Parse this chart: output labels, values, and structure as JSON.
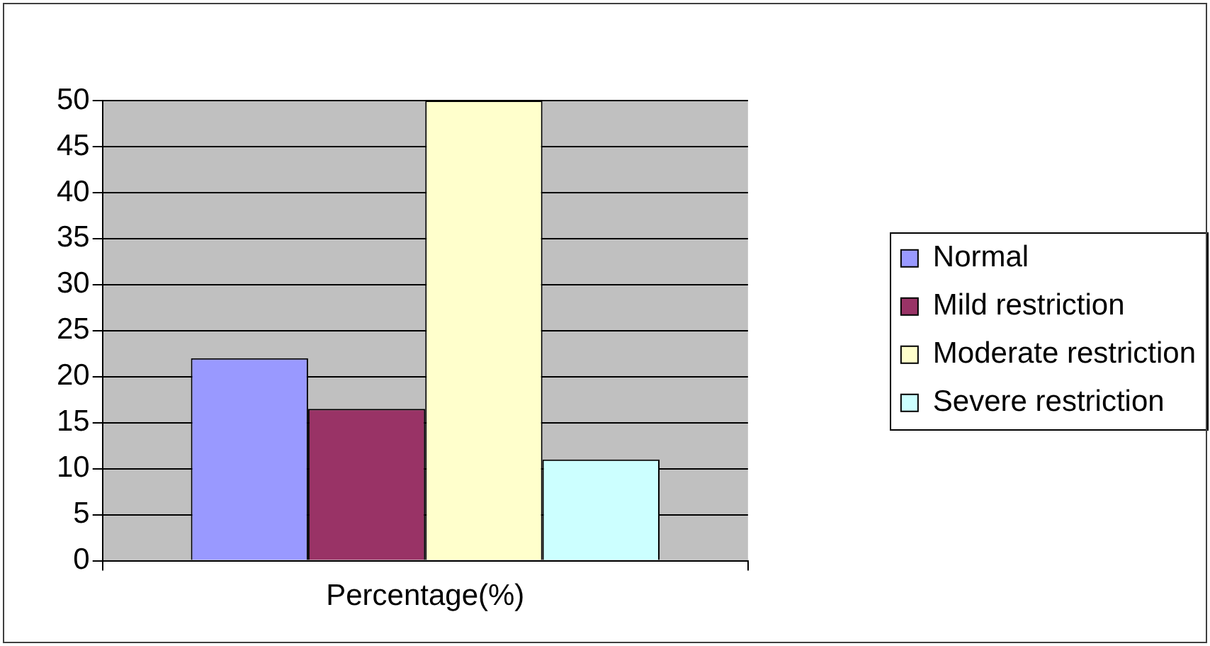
{
  "chart_data": {
    "type": "bar",
    "categories": [
      "Percentage(%)"
    ],
    "series": [
      {
        "name": "Normal",
        "color": "#9999ff",
        "values": [
          22
        ]
      },
      {
        "name": "Mild restriction",
        "color": "#993366",
        "values": [
          16.5
        ]
      },
      {
        "name": "Moderate restriction",
        "color": "#ffffcc",
        "values": [
          50
        ]
      },
      {
        "name": "Severe restriction",
        "color": "#ccffff",
        "values": [
          11
        ]
      }
    ],
    "ylim": [
      0,
      50
    ],
    "yticks": [
      0,
      5,
      10,
      15,
      20,
      25,
      30,
      35,
      40,
      45,
      50
    ],
    "grid": "y",
    "legend": "right"
  }
}
